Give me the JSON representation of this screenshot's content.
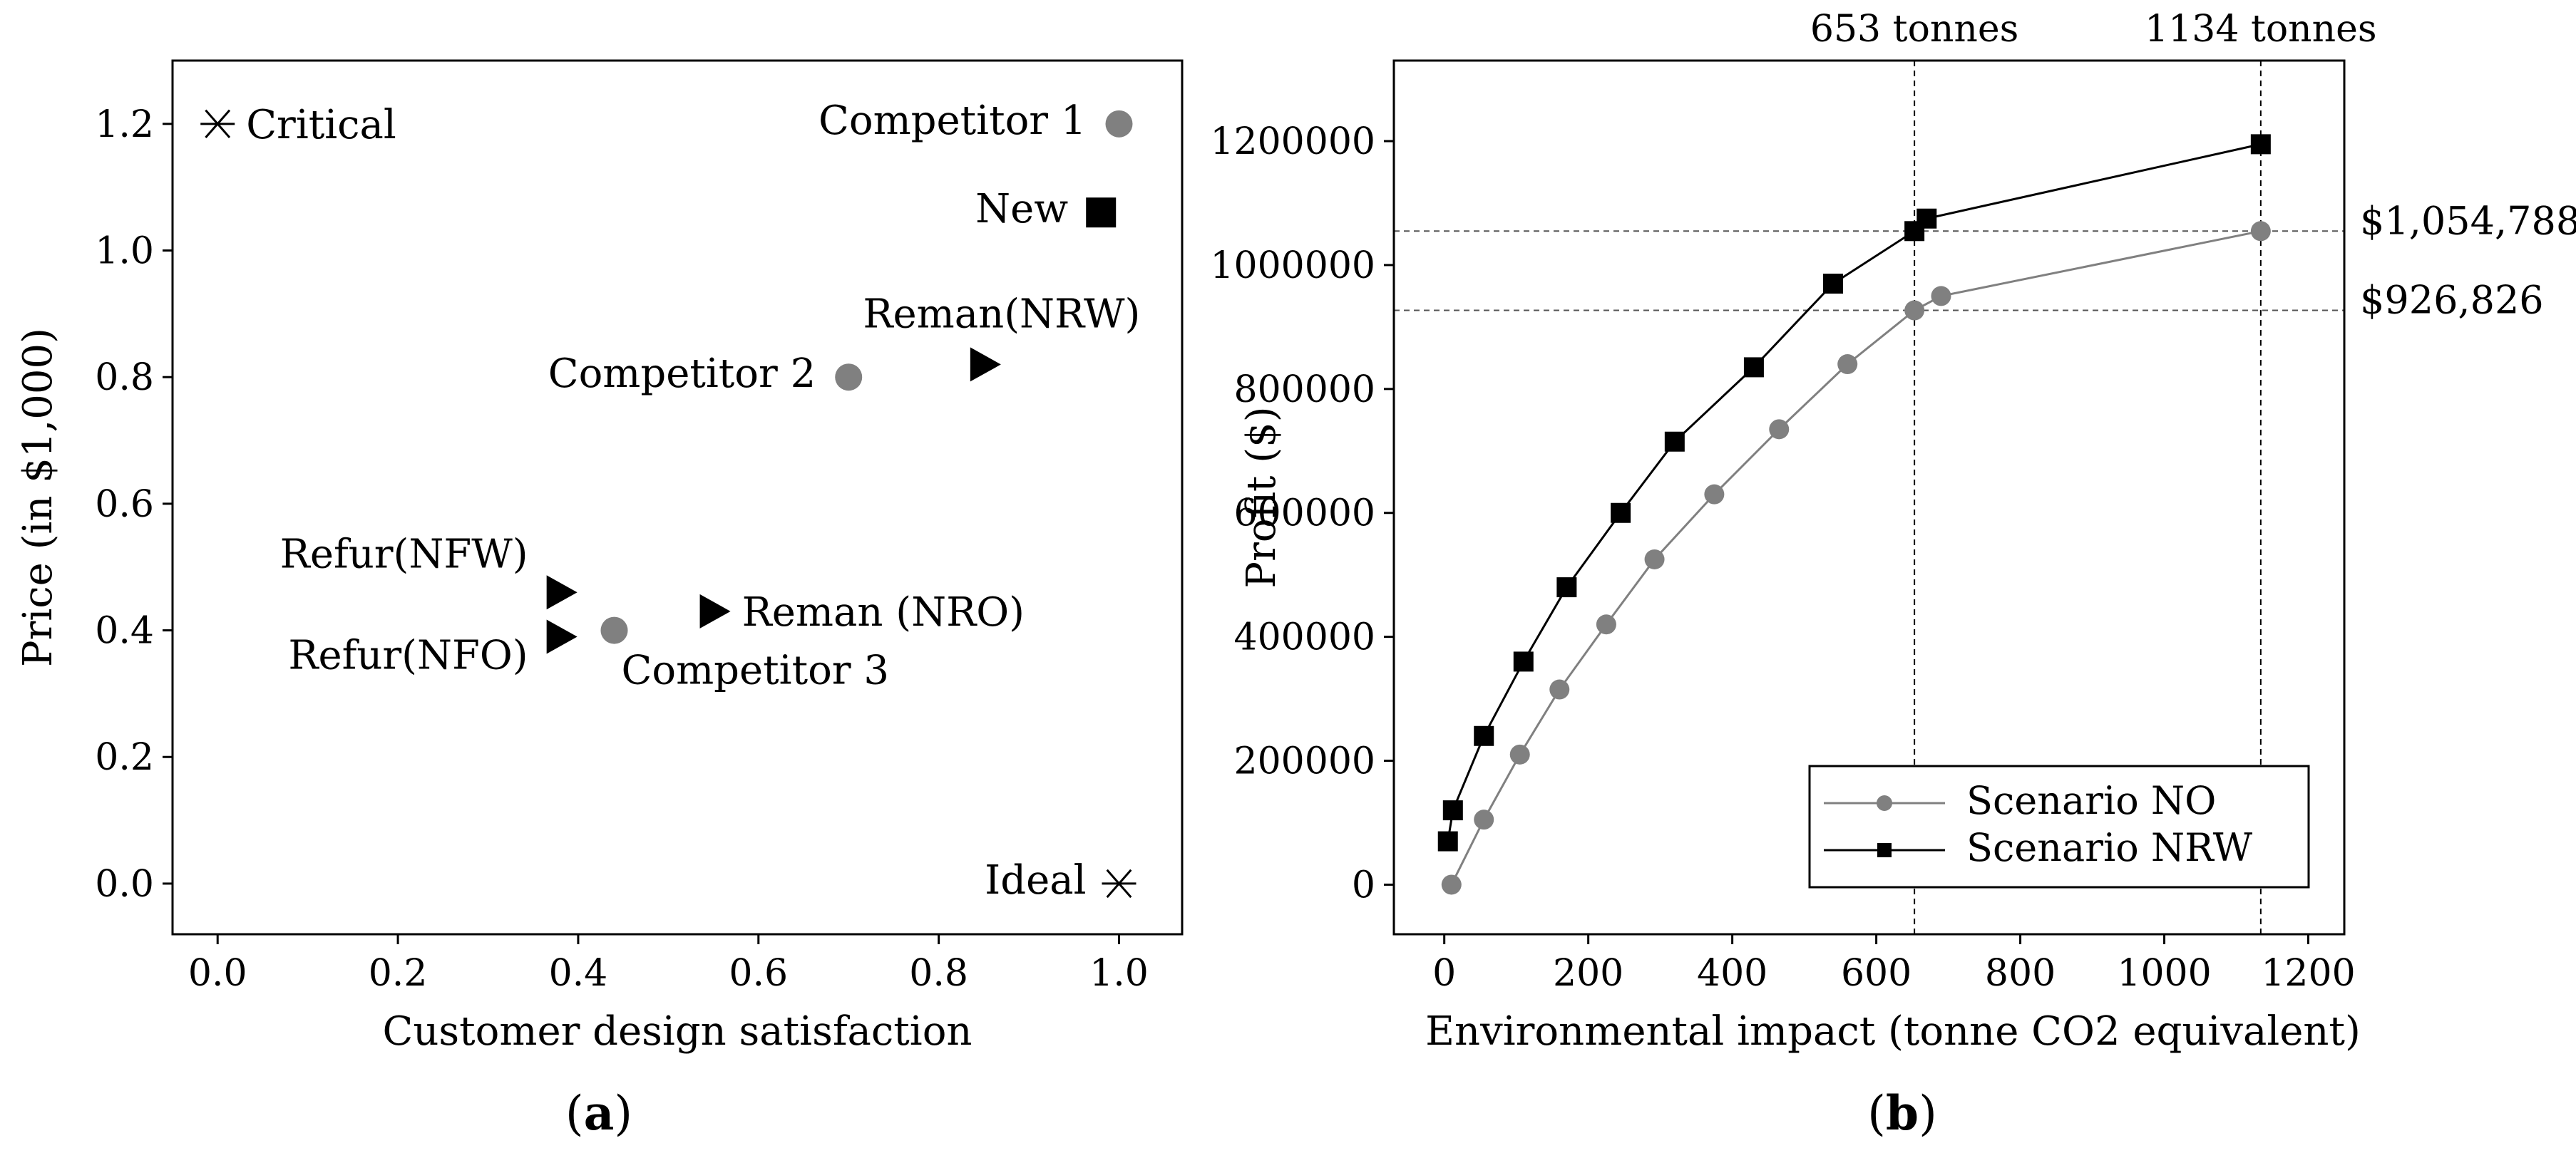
{
  "chart_data": [
    {
      "panel": "a",
      "type": "scatter",
      "panel_label": "(a)",
      "xlabel": "Customer design satisfaction",
      "ylabel": "Price (in $1,000)",
      "xlim": [
        -0.05,
        1.07
      ],
      "ylim": [
        -0.08,
        1.3
      ],
      "xticks": [
        0.0,
        0.2,
        0.4,
        0.6,
        0.8,
        1.0
      ],
      "xtick_labels": [
        "0.0",
        "0.2",
        "0.4",
        "0.6",
        "0.8",
        "1.0"
      ],
      "yticks": [
        0.0,
        0.2,
        0.4,
        0.6,
        0.8,
        1.0,
        1.2
      ],
      "ytick_labels": [
        "0.0",
        "0.2",
        "0.4",
        "0.6",
        "0.8",
        "1.0",
        "1.2"
      ],
      "points": [
        {
          "label": "Critical",
          "x": 0.0,
          "y": 1.2,
          "marker": "asterisk",
          "label_pos": "right"
        },
        {
          "label": "Competitor 1",
          "x": 1.0,
          "y": 1.2,
          "marker": "circle",
          "label_pos": "left"
        },
        {
          "label": "New",
          "x": 0.98,
          "y": 1.06,
          "marker": "square",
          "label_pos": "left"
        },
        {
          "label": "Reman(NRW)",
          "x": 0.85,
          "y": 0.82,
          "marker": "triangle",
          "label_pos": "above"
        },
        {
          "label": "Competitor 2",
          "x": 0.7,
          "y": 0.8,
          "marker": "circle",
          "label_pos": "left"
        },
        {
          "label": "Refur(NFW)",
          "x": 0.38,
          "y": 0.46,
          "marker": "triangle",
          "label_pos": "upper-left"
        },
        {
          "label": "Refur(NFO)",
          "x": 0.38,
          "y": 0.39,
          "marker": "triangle",
          "label_pos": "lower-left"
        },
        {
          "label": "Competitor 3",
          "x": 0.44,
          "y": 0.4,
          "marker": "circle",
          "label_pos": "below-right"
        },
        {
          "label": "Reman (NRO)",
          "x": 0.55,
          "y": 0.43,
          "marker": "triangle",
          "label_pos": "right"
        },
        {
          "label": "Ideal",
          "x": 1.0,
          "y": 0.0,
          "marker": "asterisk",
          "label_pos": "left"
        }
      ],
      "colors": {
        "circle": "#808080",
        "square": "#000000",
        "triangle": "#000000",
        "asterisk": "#000000"
      }
    },
    {
      "panel": "b",
      "type": "line",
      "panel_label": "(b)",
      "xlabel": "Environmental impact (tonne CO2 equivalent)",
      "ylabel": "Profit ($)",
      "xlim": [
        -70,
        1250
      ],
      "ylim": [
        -80000,
        1330000
      ],
      "xticks": [
        0,
        200,
        400,
        600,
        800,
        1000,
        1200
      ],
      "xtick_labels": [
        "0",
        "200",
        "400",
        "600",
        "800",
        "1000",
        "1200"
      ],
      "yticks": [
        0,
        200000,
        400000,
        600000,
        800000,
        1000000,
        1200000
      ],
      "ytick_labels": [
        "0",
        "200000",
        "400000",
        "600000",
        "800000",
        "1000000",
        "1200000"
      ],
      "series": [
        {
          "name": "Scenario NO",
          "color": "#808080",
          "marker": "circle",
          "x": [
            10,
            55,
            105,
            160,
            225,
            292,
            375,
            465,
            560,
            653,
            690,
            1134
          ],
          "y": [
            0,
            105000,
            210000,
            315000,
            420000,
            525000,
            630000,
            735000,
            840000,
            926826,
            950000,
            1054788
          ]
        },
        {
          "name": "Scenario NRW",
          "color": "#000000",
          "marker": "square",
          "x": [
            5,
            12,
            55,
            110,
            170,
            245,
            320,
            430,
            540,
            653,
            670,
            1134
          ],
          "y": [
            70000,
            120000,
            240000,
            360000,
            480000,
            600000,
            715000,
            835000,
            970000,
            1054788,
            1075000,
            1195000
          ]
        }
      ],
      "reference_lines": {
        "vertical": [
          {
            "x": 653,
            "label": "653 tonnes"
          },
          {
            "x": 1134,
            "label": "1134 tonnes"
          }
        ],
        "horizontal": [
          {
            "y": 1054788,
            "label": "$1,054,788"
          },
          {
            "y": 926826,
            "label": "$926,826"
          }
        ]
      },
      "legend": {
        "position": "bottom-right",
        "entries": [
          "Scenario NO",
          "Scenario NRW"
        ]
      }
    }
  ]
}
